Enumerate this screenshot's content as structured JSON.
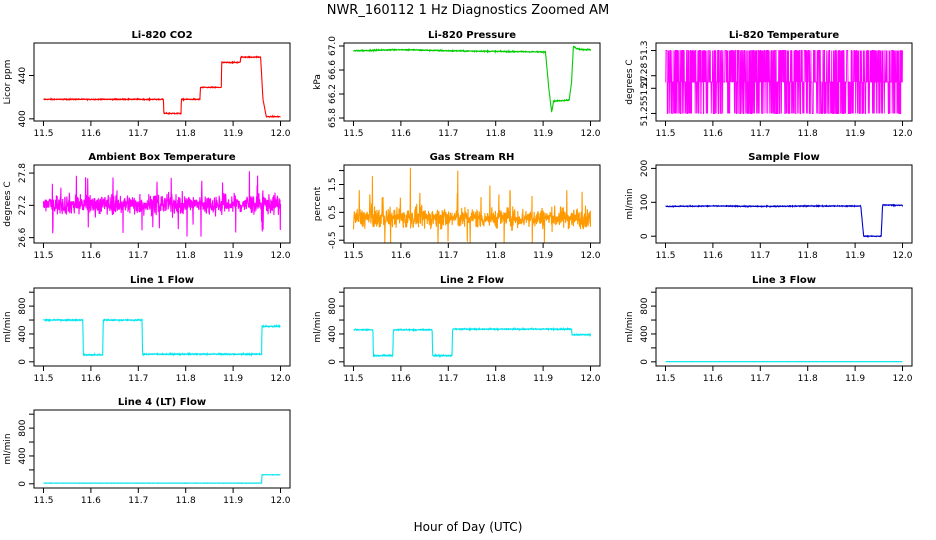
{
  "figure": {
    "title": "NWR_160112  1 Hz Diagnostics Zoomed AM",
    "xlabel": "Hour of Day (UTC)"
  },
  "chart_data": [
    {
      "id": "co2",
      "type": "line",
      "title": "Li-820 CO2",
      "ylabel": "Licor ppm",
      "color": "#ff0000",
      "xlim": [
        11.48,
        12.02
      ],
      "ylim": [
        398,
        470
      ],
      "yticks": [
        400,
        440
      ],
      "ytick_labels": [
        "400",
        "440"
      ],
      "xticks": [
        11.5,
        11.6,
        11.7,
        11.8,
        11.9,
        12.0
      ],
      "xtick_labels": [
        "11.5",
        "11.6",
        "11.7",
        "11.8",
        "11.9",
        "12.0"
      ],
      "noise": 0.4,
      "x": [
        11.5,
        11.753,
        11.754,
        11.79,
        11.791,
        11.83,
        11.831,
        11.875,
        11.876,
        11.915,
        11.916,
        11.958,
        11.963,
        11.97,
        12.0
      ],
      "y": [
        418,
        418,
        405,
        405,
        418,
        418,
        429,
        429,
        452,
        452,
        457,
        457,
        418,
        402,
        402
      ]
    },
    {
      "id": "pressure",
      "type": "line",
      "title": "Li-820 Pressure",
      "ylabel": "kPa",
      "color": "#00cc00",
      "xlim": [
        11.48,
        12.02
      ],
      "ylim": [
        65.75,
        67.05
      ],
      "yticks": [
        65.8,
        66.2,
        66.6,
        67.0
      ],
      "ytick_labels": [
        "65.8",
        "66.2",
        "66.6",
        "67.0"
      ],
      "xticks": [
        11.5,
        11.6,
        11.7,
        11.8,
        11.9,
        12.0
      ],
      "xtick_labels": [
        "11.5",
        "11.6",
        "11.7",
        "11.8",
        "11.9",
        "12.0"
      ],
      "noise": 0.008,
      "x": [
        11.5,
        11.6,
        11.7,
        11.8,
        11.905,
        11.912,
        11.918,
        11.922,
        11.955,
        11.96,
        11.964,
        11.97,
        11.98,
        12.0
      ],
      "y": [
        66.92,
        66.94,
        66.92,
        66.91,
        66.9,
        66.3,
        65.9,
        66.08,
        66.1,
        66.4,
        67.0,
        66.96,
        66.94,
        66.94
      ]
    },
    {
      "id": "temp",
      "type": "line",
      "title": "Li-820 Temperature",
      "ylabel": "degrees C",
      "color": "#ff00ff",
      "xlim": [
        11.48,
        12.02
      ],
      "ylim": [
        51.244,
        51.306
      ],
      "yticks": [
        51.25,
        51.27,
        51.28,
        51.3
      ],
      "ytick_labels": [
        "51.25",
        "51.27",
        "51.28",
        "51.3"
      ],
      "xticks": [
        11.5,
        11.6,
        11.7,
        11.8,
        11.9,
        12.0
      ],
      "xtick_labels": [
        "11.5",
        "11.6",
        "11.7",
        "11.8",
        "11.9",
        "12.0"
      ],
      "levels": [
        51.25,
        51.275,
        51.3
      ],
      "level_probs": [
        0.3,
        0.35,
        0.35
      ]
    },
    {
      "id": "ambient",
      "type": "line",
      "title": "Ambient Box Temperature",
      "ylabel": "degrees C",
      "color": "#ff00ff",
      "xlim": [
        11.48,
        12.02
      ],
      "ylim": [
        26.5,
        27.95
      ],
      "yticks": [
        26.6,
        27.2,
        27.8
      ],
      "ytick_labels": [
        "26.6",
        "27.2",
        "27.8"
      ],
      "xticks": [
        11.5,
        11.6,
        11.7,
        11.8,
        11.9,
        12.0
      ],
      "xtick_labels": [
        "11.5",
        "11.6",
        "11.7",
        "11.8",
        "11.9",
        "12.0"
      ],
      "mean": 27.22,
      "spread": 0.18
    },
    {
      "id": "rh",
      "type": "line",
      "title": "Gas Stream RH",
      "ylabel": "percent",
      "color": "#ff9900",
      "xlim": [
        11.48,
        12.02
      ],
      "ylim": [
        -0.6,
        2.2
      ],
      "yticks": [
        -0.5,
        0.0,
        0.5,
        1.0,
        1.5,
        2.0
      ],
      "ytick_labels": [
        "-0.5",
        "0.5",
        "1.5"
      ],
      "xticks": [
        11.5,
        11.6,
        11.7,
        11.8,
        11.9,
        12.0
      ],
      "xtick_labels": [
        "11.5",
        "11.6",
        "11.7",
        "11.8",
        "11.9",
        "12.0"
      ],
      "mean": 0.3,
      "spread": 0.35,
      "spikes": [
        [
          11.54,
          1.8
        ],
        [
          11.62,
          2.1
        ],
        [
          11.72,
          2.0
        ],
        [
          11.64,
          1.2
        ],
        [
          11.83,
          1.3
        ],
        [
          11.95,
          1.3
        ]
      ]
    },
    {
      "id": "sflow",
      "type": "line",
      "title": "Sample Flow",
      "ylabel": "ml/min",
      "color": "#0000cc",
      "xlim": [
        11.48,
        12.02
      ],
      "ylim": [
        -20,
        210
      ],
      "yticks": [
        0,
        100,
        200
      ],
      "ytick_labels": [
        "0",
        "100",
        "200"
      ],
      "xticks": [
        11.5,
        11.6,
        11.7,
        11.8,
        11.9,
        12.0
      ],
      "xtick_labels": [
        "11.5",
        "11.6",
        "11.7",
        "11.8",
        "11.9",
        "12.0"
      ],
      "noise": 1.2,
      "x": [
        11.5,
        11.6,
        11.7,
        11.8,
        11.912,
        11.918,
        11.955,
        11.958,
        11.965,
        12.0
      ],
      "y": [
        88,
        89,
        88,
        89,
        89,
        0,
        0,
        93,
        92,
        91
      ]
    },
    {
      "id": "line1",
      "type": "line",
      "title": "Line 1 Flow",
      "ylabel": "ml/min",
      "color": "#00e5ee",
      "xlim": [
        11.48,
        12.02
      ],
      "ylim": [
        -60,
        1060
      ],
      "yticks": [
        0,
        200,
        400,
        600,
        800,
        1000
      ],
      "ytick_labels": [
        "0",
        "400",
        "800"
      ],
      "xticks": [
        11.5,
        11.6,
        11.7,
        11.8,
        11.9,
        12.0
      ],
      "xtick_labels": [
        "11.5",
        "11.6",
        "11.7",
        "11.8",
        "11.9",
        "12.0"
      ],
      "noise": 8,
      "x": [
        11.5,
        11.583,
        11.584,
        11.625,
        11.626,
        11.708,
        11.709,
        11.76,
        11.9,
        11.96,
        11.961,
        12.0
      ],
      "y": [
        600,
        600,
        100,
        100,
        600,
        600,
        110,
        110,
        110,
        110,
        510,
        510
      ]
    },
    {
      "id": "line2",
      "type": "line",
      "title": "Line 2 Flow",
      "ylabel": "ml/min",
      "color": "#00e5ee",
      "xlim": [
        11.48,
        12.02
      ],
      "ylim": [
        -60,
        1060
      ],
      "yticks": [
        0,
        200,
        400,
        600,
        800,
        1000
      ],
      "ytick_labels": [
        "0",
        "400",
        "800"
      ],
      "xticks": [
        11.5,
        11.6,
        11.7,
        11.8,
        11.9,
        12.0
      ],
      "xtick_labels": [
        "11.5",
        "11.6",
        "11.7",
        "11.8",
        "11.9",
        "12.0"
      ],
      "noise": 8,
      "x": [
        11.5,
        11.541,
        11.542,
        11.583,
        11.584,
        11.666,
        11.667,
        11.708,
        11.709,
        11.8,
        11.96,
        11.961,
        12.0
      ],
      "y": [
        460,
        460,
        90,
        90,
        460,
        460,
        90,
        90,
        470,
        470,
        470,
        390,
        390
      ]
    },
    {
      "id": "line3",
      "type": "line",
      "title": "Line 3 Flow",
      "ylabel": "ml/min",
      "color": "#00e5ee",
      "xlim": [
        11.48,
        12.02
      ],
      "ylim": [
        -60,
        1060
      ],
      "yticks": [
        0,
        200,
        400,
        600,
        800,
        1000
      ],
      "ytick_labels": [
        "0",
        "400",
        "800"
      ],
      "xticks": [
        11.5,
        11.6,
        11.7,
        11.8,
        11.9,
        12.0
      ],
      "xtick_labels": [
        "11.5",
        "11.6",
        "11.7",
        "11.8",
        "11.9",
        "12.0"
      ],
      "noise": 1,
      "x": [
        11.5,
        12.0
      ],
      "y": [
        2,
        2
      ]
    },
    {
      "id": "line4",
      "type": "line",
      "title": "Line 4 (LT) Flow",
      "ylabel": "ml/min",
      "color": "#00e5ee",
      "xlim": [
        11.48,
        12.02
      ],
      "ylim": [
        -60,
        1060
      ],
      "yticks": [
        0,
        200,
        400,
        600,
        800,
        1000
      ],
      "ytick_labels": [
        "0",
        "400",
        "800"
      ],
      "xticks": [
        11.5,
        11.6,
        11.7,
        11.8,
        11.9,
        12.0
      ],
      "xtick_labels": [
        "11.5",
        "11.6",
        "11.7",
        "11.8",
        "11.9",
        "12.0"
      ],
      "noise": 2,
      "x": [
        11.5,
        11.96,
        11.961,
        12.0
      ],
      "y": [
        10,
        10,
        130,
        130
      ]
    }
  ]
}
